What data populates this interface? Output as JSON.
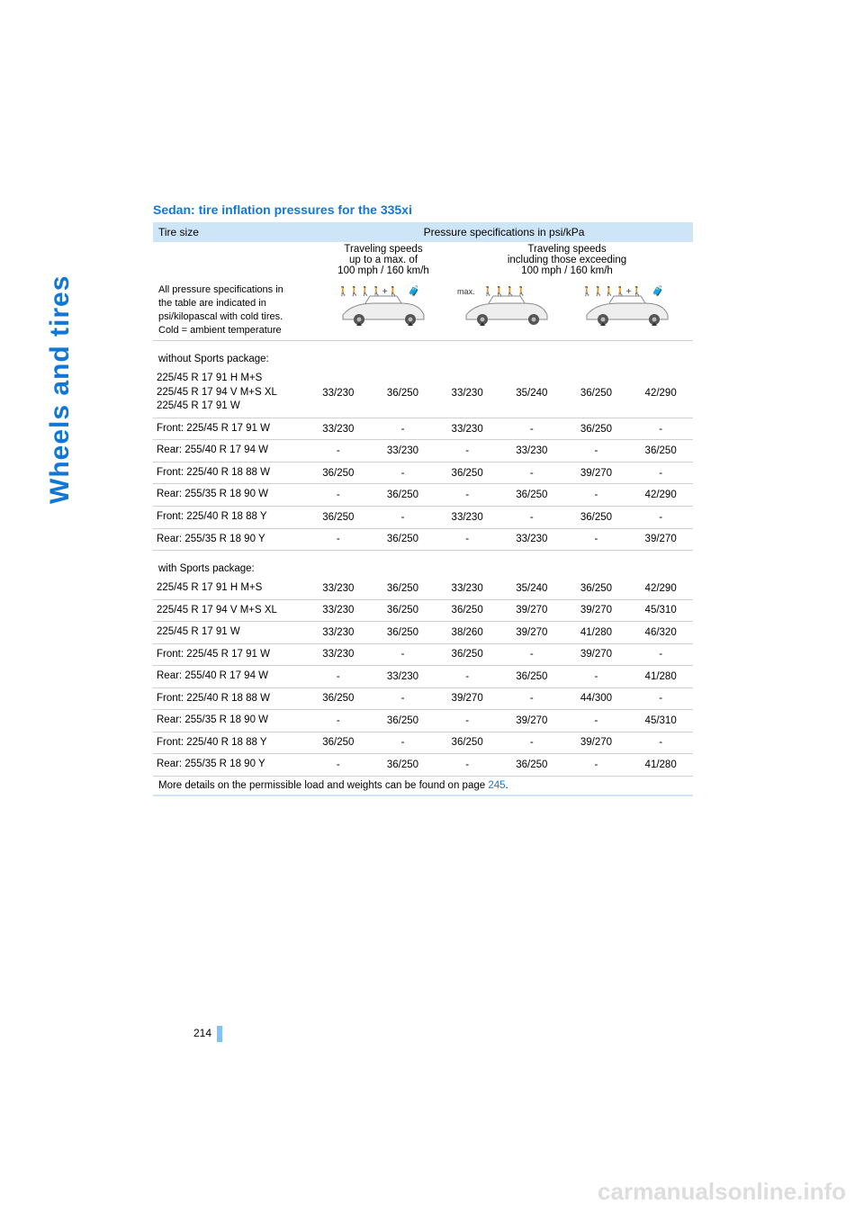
{
  "sidebar": {
    "label": "Wheels and tires"
  },
  "section_title": "Sedan: tire inflation pressures for the 335xi",
  "header": {
    "tire_size_label": "Tire size",
    "pressure_label": "Pressure specifications in psi/kPa",
    "sub_left_l1": "Traveling speeds",
    "sub_left_l2": "up to a max. of",
    "sub_left_l3": "100 mph / 160 km/h",
    "sub_right_l1": "Traveling speeds",
    "sub_right_l2": "including those exceeding",
    "sub_right_l3": "100 mph / 160 km/h",
    "spec_note_l1": "All pressure specifications in",
    "spec_note_l2": "the table are indicated in",
    "spec_note_l3": "psi/kilopascal with cold tires.",
    "spec_note_l4": "Cold = ambient temperature"
  },
  "groups": {
    "without": {
      "label": "without Sports package:"
    },
    "with": {
      "label": "with Sports package:"
    }
  },
  "rows_without": [
    {
      "size": "225/45 R 17 91 H M+S\n225/45 R 17 94 V M+S XL\n225/45 R 17 91 W",
      "v": [
        "33/230",
        "36/250",
        "33/230",
        "35/240",
        "36/250",
        "42/290"
      ]
    },
    {
      "size": "Front: 225/45 R 17 91 W",
      "v": [
        "33/230",
        "-",
        "33/230",
        "-",
        "36/250",
        "-"
      ]
    },
    {
      "size": "Rear: 255/40 R 17 94 W",
      "v": [
        "-",
        "33/230",
        "-",
        "33/230",
        "-",
        "36/250"
      ]
    },
    {
      "size": "Front: 225/40 R 18 88 W",
      "v": [
        "36/250",
        "-",
        "36/250",
        "-",
        "39/270",
        "-"
      ]
    },
    {
      "size": "Rear: 255/35 R 18 90 W",
      "v": [
        "-",
        "36/250",
        "-",
        "36/250",
        "-",
        "42/290"
      ]
    },
    {
      "size": "Front: 225/40 R 18 88 Y",
      "v": [
        "36/250",
        "-",
        "33/230",
        "-",
        "36/250",
        "-"
      ]
    },
    {
      "size": "Rear: 255/35 R 18 90 Y",
      "v": [
        "-",
        "36/250",
        "-",
        "33/230",
        "-",
        "39/270"
      ]
    }
  ],
  "rows_with": [
    {
      "size": "225/45 R 17 91 H M+S",
      "v": [
        "33/230",
        "36/250",
        "33/230",
        "35/240",
        "36/250",
        "42/290"
      ]
    },
    {
      "size": "225/45 R 17 94 V M+S XL",
      "v": [
        "33/230",
        "36/250",
        "36/250",
        "39/270",
        "39/270",
        "45/310"
      ]
    },
    {
      "size": "225/45 R 17 91 W",
      "v": [
        "33/230",
        "36/250",
        "38/260",
        "39/270",
        "41/280",
        "46/320"
      ]
    },
    {
      "size": "Front: 225/45 R 17 91 W",
      "v": [
        "33/230",
        "-",
        "36/250",
        "-",
        "39/270",
        "-"
      ]
    },
    {
      "size": "Rear: 255/40 R 17 94 W",
      "v": [
        "-",
        "33/230",
        "-",
        "36/250",
        "-",
        "41/280"
      ]
    },
    {
      "size": "Front: 225/40 R 18 88 W",
      "v": [
        "36/250",
        "-",
        "39/270",
        "-",
        "44/300",
        "-"
      ]
    },
    {
      "size": "Rear: 255/35 R 18 90 W",
      "v": [
        "-",
        "36/250",
        "-",
        "39/270",
        "-",
        "45/310"
      ]
    },
    {
      "size": "Front: 225/40 R 18 88 Y",
      "v": [
        "36/250",
        "-",
        "36/250",
        "-",
        "39/270",
        "-"
      ]
    },
    {
      "size": "Rear: 255/35 R 18 90 Y",
      "v": [
        "-",
        "36/250",
        "-",
        "36/250",
        "-",
        "41/280"
      ]
    }
  ],
  "footer": {
    "text_pre": "More details on the permissible load and weights can be found on page ",
    "page_ref": "245",
    "text_post": "."
  },
  "page_number": "214",
  "watermark": "carmanualsonline.info",
  "colors": {
    "accent": "#1177d6",
    "header_bg": "#cde5f7",
    "border": "#d0d0d0",
    "watermark": "#dddddd"
  }
}
